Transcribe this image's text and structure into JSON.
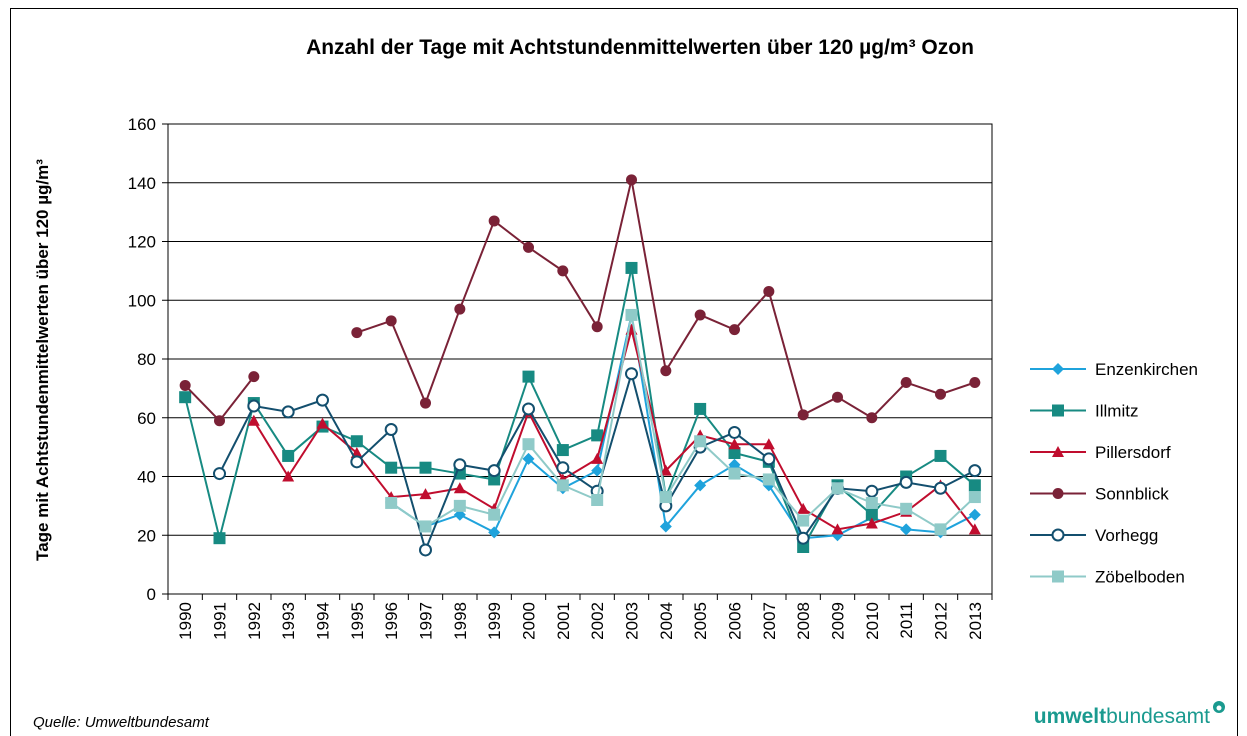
{
  "chart_data": {
    "type": "line",
    "title": "Anzahl der Tage mit Achtstundenmittelwerten über 120 µg/m³ Ozon",
    "y_label": "Tage mit Achtstundenmittelwerten über 120 µg/m³",
    "source": "Quelle: Umweltbundesamt",
    "logo": {
      "bold": "umwelt",
      "rest": "bundesamt"
    },
    "categories": [
      "1990",
      "1991",
      "1992",
      "1993",
      "1994",
      "1995",
      "1996",
      "1997",
      "1998",
      "1999",
      "2000",
      "2001",
      "2002",
      "2003",
      "2004",
      "2005",
      "2006",
      "2007",
      "2008",
      "2009",
      "2010",
      "2011",
      "2012",
      "2013"
    ],
    "ylim": [
      0,
      160
    ],
    "yticks": [
      0,
      20,
      40,
      60,
      80,
      100,
      120,
      140,
      160
    ],
    "grid": true,
    "legend": "right",
    "series": [
      {
        "name": "Enzenkirchen",
        "color": "#1fa3dc",
        "marker": "diamond",
        "values": [
          null,
          null,
          null,
          null,
          null,
          null,
          31,
          23,
          27,
          21,
          46,
          36,
          42,
          95,
          23,
          37,
          44,
          37,
          19,
          20,
          26,
          22,
          21,
          27
        ]
      },
      {
        "name": "Illmitz",
        "color": "#178a82",
        "marker": "square",
        "values": [
          67,
          19,
          65,
          47,
          57,
          52,
          43,
          43,
          41,
          39,
          74,
          49,
          54,
          111,
          33,
          63,
          48,
          45,
          16,
          37,
          27,
          40,
          47,
          37
        ]
      },
      {
        "name": "Pillersdorf",
        "color": "#c00d2e",
        "marker": "triangle",
        "values": [
          null,
          null,
          59,
          40,
          58,
          48,
          33,
          34,
          36,
          29,
          62,
          39,
          46,
          90,
          42,
          54,
          51,
          51,
          29,
          22,
          24,
          28,
          37,
          22
        ]
      },
      {
        "name": "Sonnblick",
        "color": "#7a2237",
        "marker": "circle",
        "values": [
          71,
          59,
          74,
          null,
          null,
          89,
          93,
          65,
          97,
          127,
          118,
          110,
          91,
          141,
          76,
          95,
          90,
          103,
          61,
          67,
          60,
          72,
          68,
          72
        ]
      },
      {
        "name": "Vorhegg",
        "color": "#134f6e",
        "marker": "open-circle",
        "values": [
          null,
          41,
          64,
          62,
          66,
          45,
          56,
          15,
          44,
          42,
          63,
          43,
          35,
          75,
          30,
          50,
          55,
          46,
          19,
          36,
          35,
          38,
          36,
          42
        ]
      },
      {
        "name": "Zöbelboden",
        "color": "#8fcac8",
        "marker": "square",
        "values": [
          null,
          null,
          null,
          null,
          null,
          null,
          31,
          23,
          30,
          27,
          51,
          37,
          32,
          95,
          33,
          52,
          41,
          39,
          25,
          36,
          31,
          29,
          22,
          33
        ]
      }
    ]
  }
}
